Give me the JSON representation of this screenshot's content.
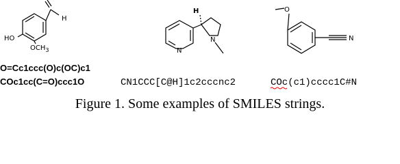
{
  "molecules": [
    {
      "atoms": [
        "H",
        "HO",
        "OCH",
        "3"
      ],
      "smiles": [
        "O=Cc1ccc(O)c(OC)c1",
        "COc1cc(C=O)ccc1O"
      ]
    },
    {
      "atoms": [
        "H",
        "N",
        "N"
      ],
      "smiles": [
        "CN1CCC[C@H]1c2cccnc2"
      ]
    },
    {
      "atoms": [
        "O",
        "N"
      ],
      "smiles": [
        "COc(c1)cccc1C#N"
      ]
    }
  ],
  "caption": "Figure 1. Some examples of SMILES strings."
}
